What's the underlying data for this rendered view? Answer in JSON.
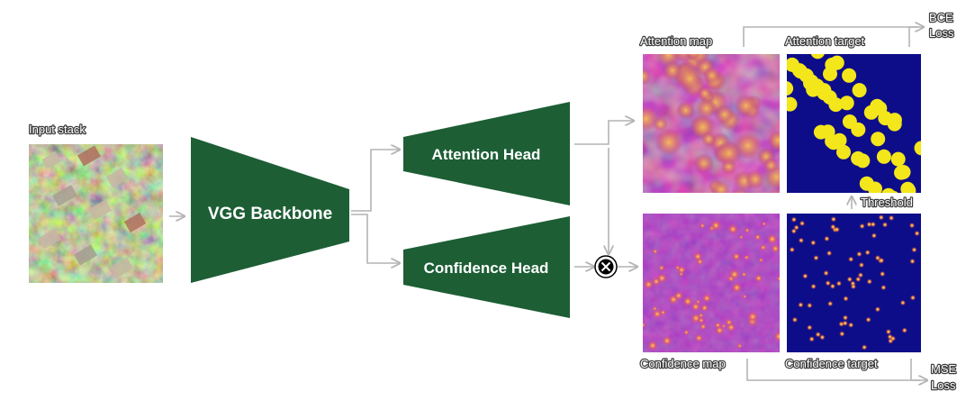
{
  "input": {
    "label": "Input stack"
  },
  "backbone": {
    "label": "VGG Backbone"
  },
  "heads": {
    "attention": {
      "label": "Attention Head"
    },
    "confidence": {
      "label": "Confidence Head"
    }
  },
  "maps": {
    "attention_map": "Attention map",
    "attention_target": "Attention target",
    "confidence_map": "Confidence map",
    "confidence_target": "Confidence target",
    "threshold": "Threshold"
  },
  "losses": {
    "bce": {
      "line1": "BCE",
      "line2": "Loss"
    },
    "mse": {
      "line1": "MSE",
      "line2": "Loss"
    }
  },
  "operator": {
    "symbol": "⊗",
    "meaning": "element-wise multiplication"
  },
  "colors": {
    "head_green": "#1d5e35",
    "target_background": "#0d0d8a",
    "target_blob": "#f3e61a",
    "heatmap_low": "#3a0a8c",
    "heatmap_mid": "#cf4f86",
    "heatmap_high": "#f4c14a",
    "connector": "#b4b4b4"
  }
}
